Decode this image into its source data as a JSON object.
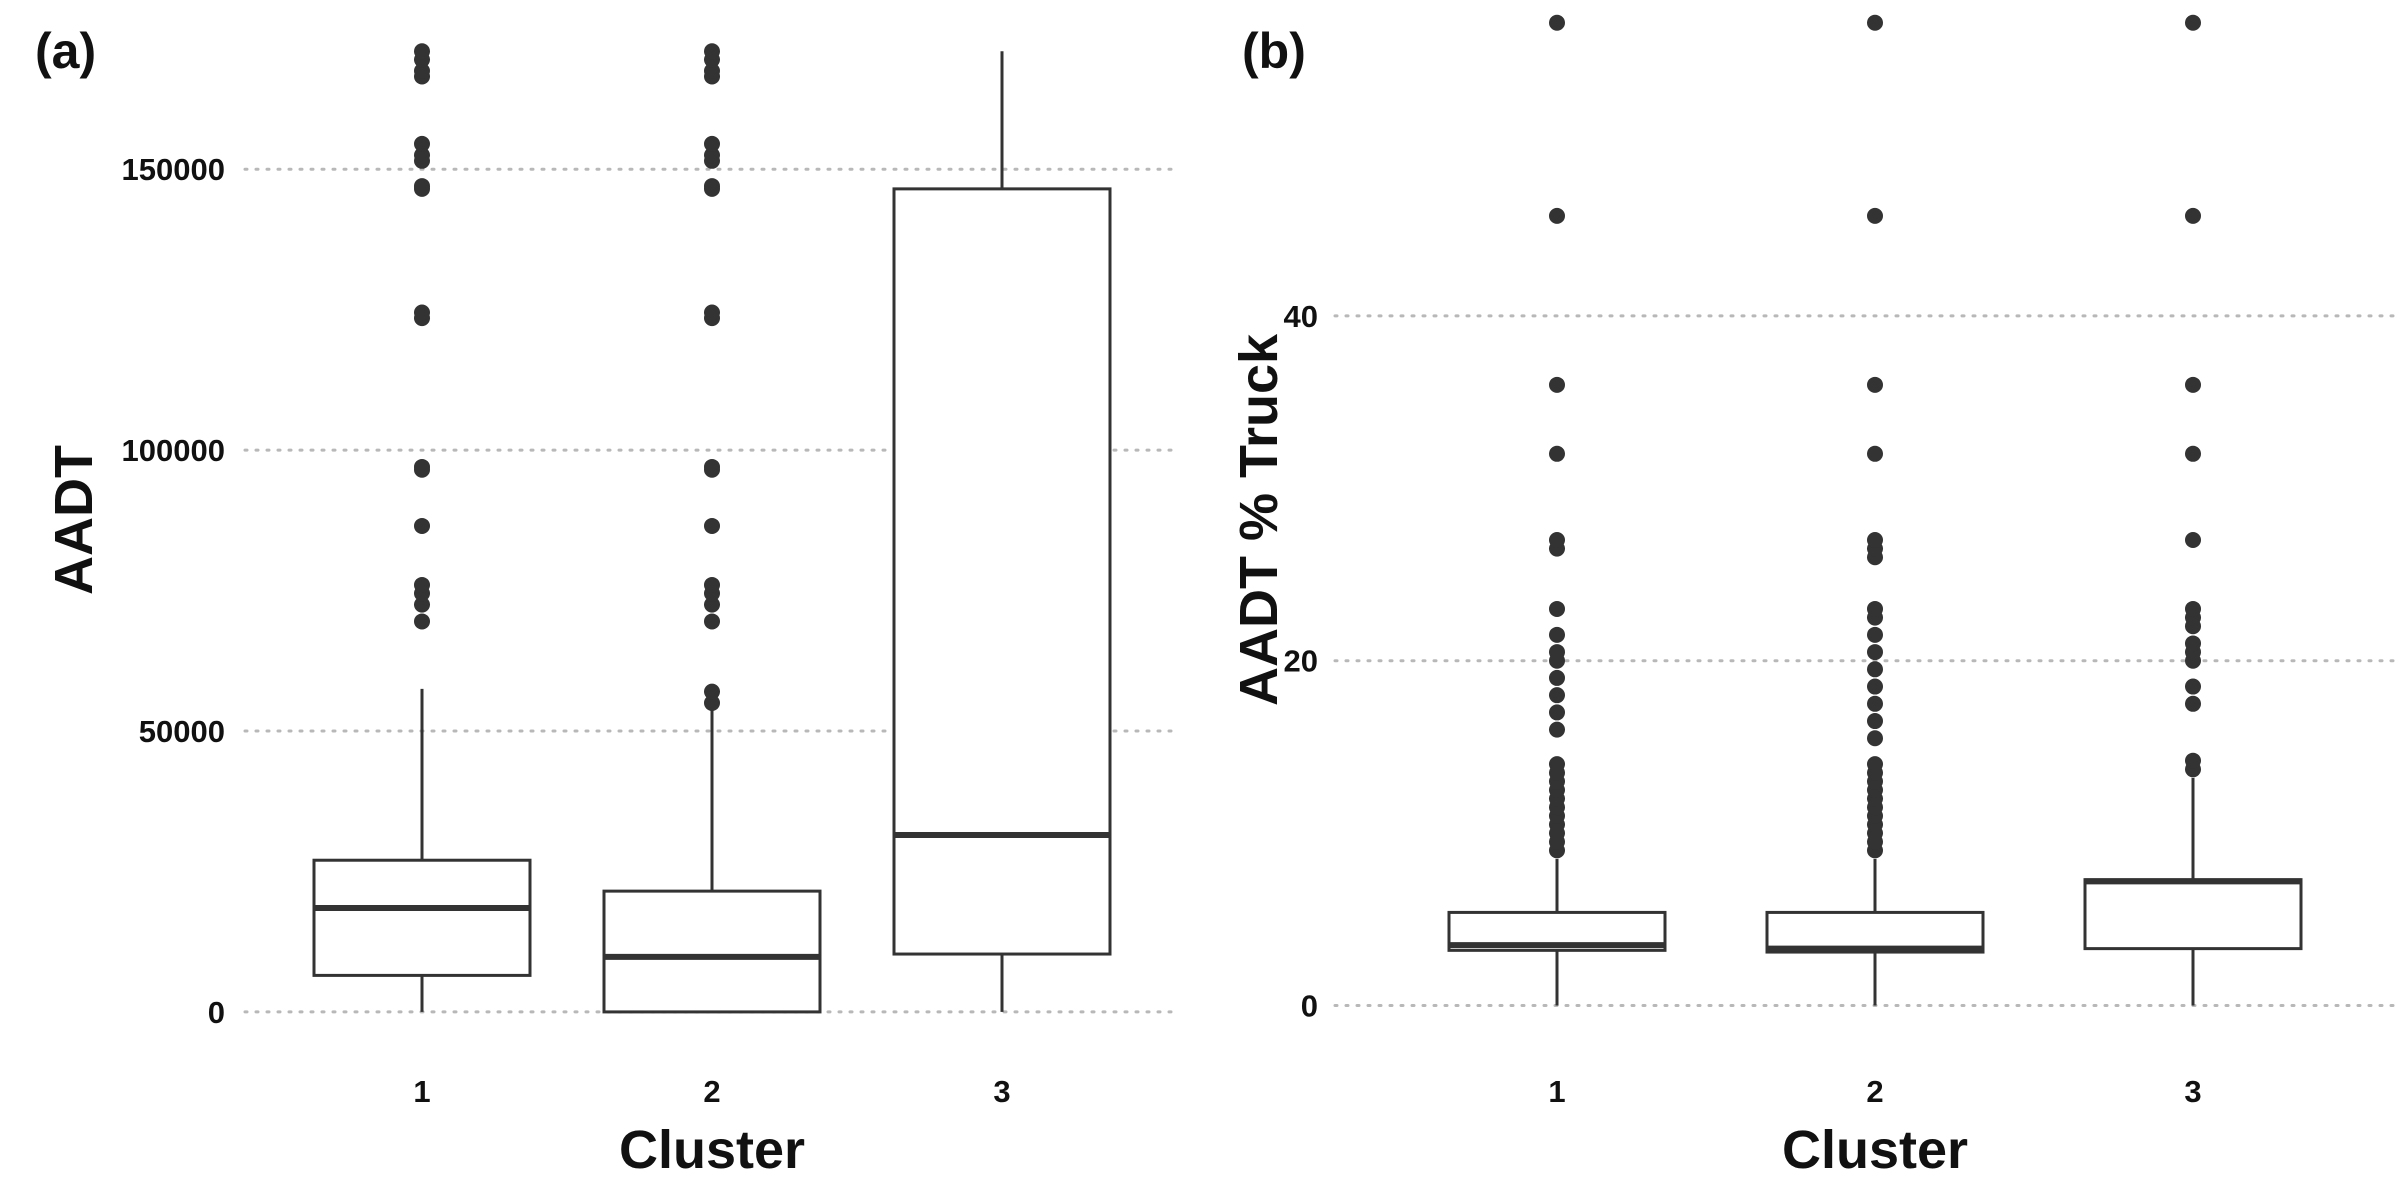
{
  "chart_data": [
    {
      "type": "box",
      "panel_label": "(a)",
      "xlabel": "Cluster",
      "ylabel": "AADT",
      "categories": [
        "1",
        "2",
        "3"
      ],
      "y_ticks": [
        0,
        50000,
        100000,
        150000
      ],
      "y_tick_labels": [
        "0",
        "50000",
        "100000",
        "150000"
      ],
      "ylim": [
        -5000,
        173000
      ],
      "grid": "horizontal dotted",
      "boxes": [
        {
          "category": "1",
          "q1": 6500,
          "median": 18500,
          "q3": 27000,
          "whisker_low": 0,
          "whisker_high": 57500,
          "outliers": [
            69500,
            72500,
            74500,
            76000,
            86500,
            96500,
            97000,
            123500,
            124500,
            146500,
            147000,
            151500,
            152500,
            154500,
            166500,
            167500,
            169500,
            171000
          ]
        },
        {
          "category": "2",
          "q1": 0,
          "median": 9800,
          "q3": 21500,
          "whisker_low": 0,
          "whisker_high": 54000,
          "outliers": [
            55000,
            57000,
            69500,
            72500,
            74500,
            76000,
            86500,
            96500,
            97000,
            123500,
            124500,
            146500,
            147000,
            151500,
            152500,
            154500,
            166500,
            167500,
            169500,
            171000
          ]
        },
        {
          "category": "3",
          "q1": 10300,
          "median": 31500,
          "q3": 146500,
          "whisker_low": 0,
          "whisker_high": 171000,
          "outliers": []
        }
      ]
    },
    {
      "type": "box",
      "panel_label": "(b)",
      "xlabel": "Cluster",
      "ylabel": "AADT % Truck",
      "categories": [
        "1",
        "2",
        "3"
      ],
      "y_ticks": [
        0,
        20,
        40
      ],
      "y_tick_labels": [
        "0",
        "20",
        "40"
      ],
      "ylim": [
        -2,
        56
      ],
      "grid": "horizontal dotted",
      "boxes": [
        {
          "category": "1",
          "q1": 3.2,
          "median": 3.5,
          "q3": 5.4,
          "whisker_low": 0,
          "whisker_high": 8.5,
          "outliers": [
            9.0,
            9.5,
            10.0,
            10.5,
            11.0,
            11.5,
            12.0,
            12.5,
            13.0,
            13.5,
            14.0,
            16.0,
            17.0,
            18.0,
            19.0,
            20.0,
            20.5,
            21.5,
            23.0,
            26.5,
            27.0,
            32.0,
            36.0,
            45.8,
            57.0
          ]
        },
        {
          "category": "2",
          "q1": 3.1,
          "median": 3.3,
          "q3": 5.4,
          "whisker_low": 0,
          "whisker_high": 8.5,
          "outliers": [
            9.0,
            9.5,
            10.0,
            10.5,
            11.0,
            11.5,
            12.0,
            12.5,
            13.0,
            13.5,
            14.0,
            15.5,
            16.5,
            17.5,
            18.5,
            19.5,
            20.5,
            21.5,
            22.5,
            23.0,
            26.0,
            26.5,
            27.0,
            32.0,
            36.0,
            45.8,
            57.0
          ]
        },
        {
          "category": "3",
          "q1": 3.3,
          "median": 7.2,
          "q3": 7.3,
          "whisker_low": 0,
          "whisker_high": 13.2,
          "outliers": [
            13.7,
            14.2,
            17.5,
            18.5,
            20.0,
            20.5,
            21.0,
            22.0,
            22.5,
            23.0,
            27.0,
            32.0,
            36.0,
            45.8,
            57.0
          ]
        }
      ]
    }
  ]
}
